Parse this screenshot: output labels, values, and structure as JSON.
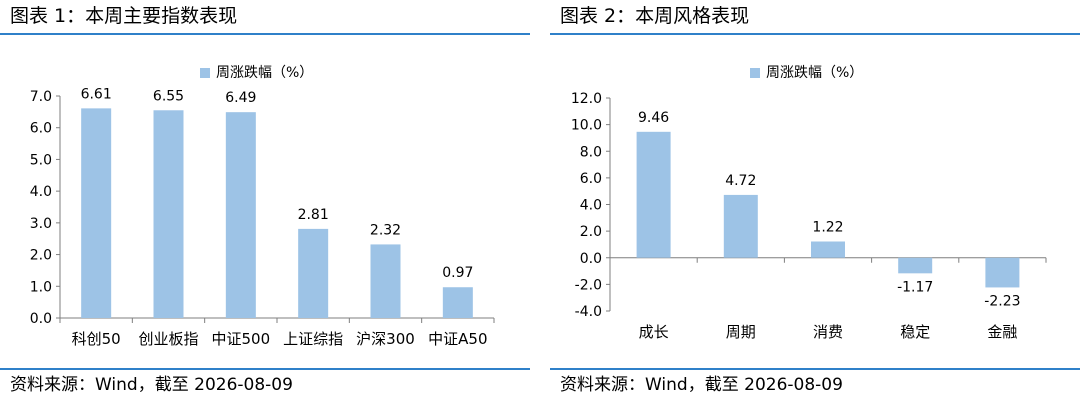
{
  "colors": {
    "bar": "#9dc3e6",
    "rule": "#2f80c9",
    "axis": "#7f7f7f"
  },
  "charts": [
    {
      "title": "图表 1：本周主要指数表现",
      "source": "资料来源：Wind，截至 2026-08-09",
      "chart_data": {
        "type": "bar",
        "categories": [
          "科创50",
          "创业板指",
          "中证500",
          "上证综指",
          "沪深300",
          "中证A50"
        ],
        "series": [
          {
            "name": "周涨跌幅（%）",
            "values": [
              6.61,
              6.55,
              6.49,
              2.81,
              2.32,
              0.97
            ]
          }
        ],
        "value_labels": [
          "6.61",
          "6.55",
          "6.49",
          "2.81",
          "2.32",
          "0.97"
        ],
        "ylim": [
          0,
          7
        ],
        "yticks": [
          "0.0",
          "1.0",
          "2.0",
          "3.0",
          "4.0",
          "5.0",
          "6.0",
          "7.0"
        ],
        "grid": false,
        "legend": "top-center"
      }
    },
    {
      "title": "图表 2：本周风格表现",
      "source": "资料来源：Wind，截至 2026-08-09",
      "chart_data": {
        "type": "bar",
        "categories": [
          "成长",
          "周期",
          "消费",
          "稳定",
          "金融"
        ],
        "series": [
          {
            "name": "周涨跌幅（%）",
            "values": [
              9.46,
              4.72,
              1.22,
              -1.17,
              -2.23
            ]
          }
        ],
        "value_labels": [
          "9.46",
          "4.72",
          "1.22",
          "-1.17",
          "-2.23"
        ],
        "ylim": [
          -4,
          12
        ],
        "yticks": [
          "-4.0",
          "-2.0",
          "0.0",
          "2.0",
          "4.0",
          "6.0",
          "8.0",
          "10.0",
          "12.0"
        ],
        "grid": false,
        "legend": "top-center"
      }
    }
  ]
}
